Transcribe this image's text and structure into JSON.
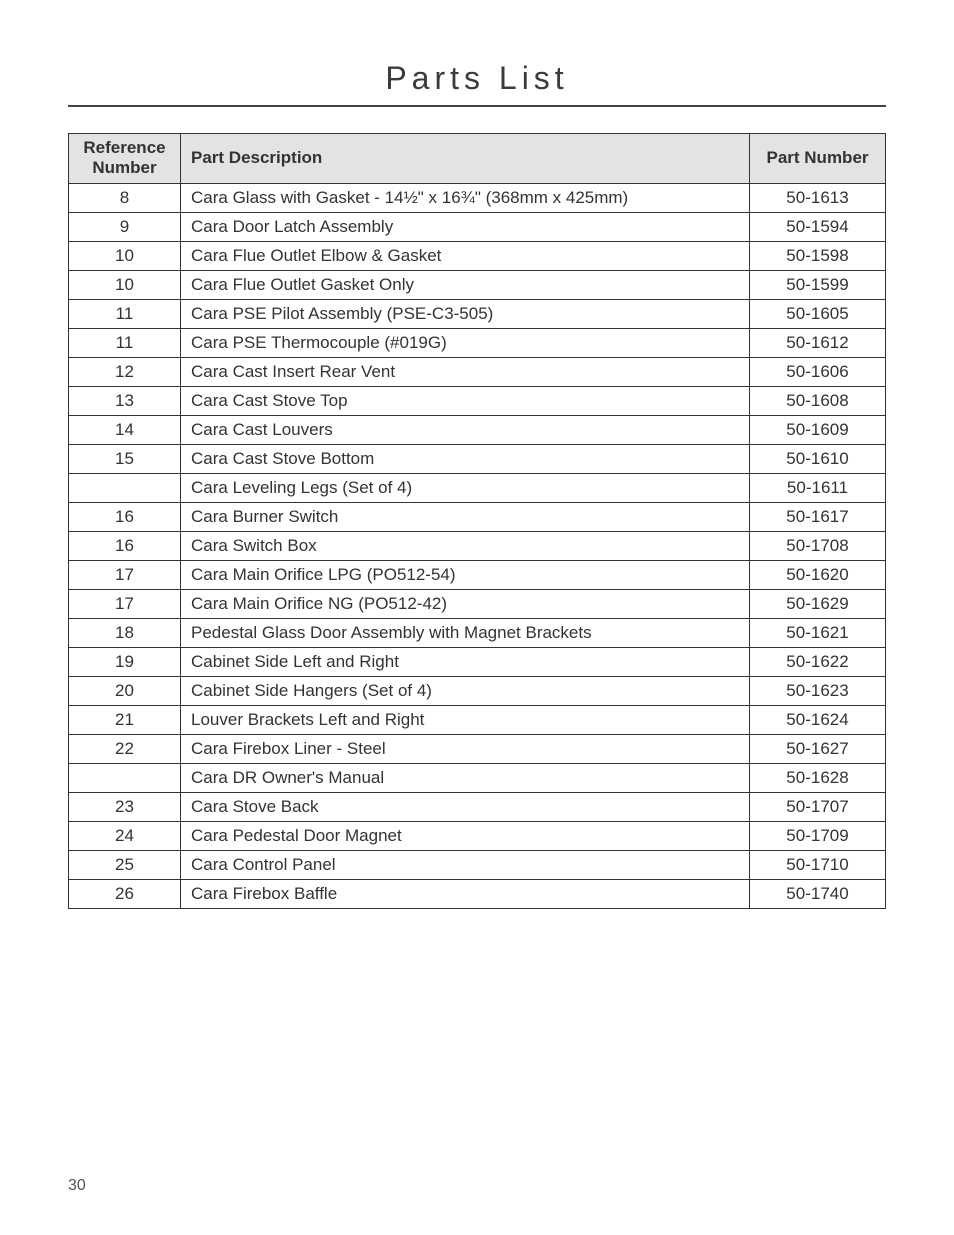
{
  "pageTitle": "Parts List",
  "pageNumber": "30",
  "columns": {
    "refLine1": "Reference",
    "refLine2": "Number",
    "desc": "Part Description",
    "pn": "Part Number"
  },
  "rows": [
    {
      "ref": "8",
      "desc": "Cara Glass with Gasket - 14½\" x 16¾\" (368mm x 425mm)",
      "pn": "50-1613"
    },
    {
      "ref": "9",
      "desc": "Cara Door Latch Assembly",
      "pn": "50-1594"
    },
    {
      "ref": "10",
      "desc": "Cara Flue Outlet Elbow & Gasket",
      "pn": "50-1598"
    },
    {
      "ref": "10",
      "desc": "Cara Flue Outlet Gasket Only",
      "pn": "50-1599"
    },
    {
      "ref": "11",
      "desc": "Cara PSE Pilot Assembly (PSE-C3-505)",
      "pn": "50-1605"
    },
    {
      "ref": "11",
      "desc": "Cara PSE Thermocouple (#019G)",
      "pn": "50-1612"
    },
    {
      "ref": "12",
      "desc": "Cara Cast Insert Rear Vent",
      "pn": "50-1606"
    },
    {
      "ref": "13",
      "desc": "Cara Cast Stove Top",
      "pn": "50-1608"
    },
    {
      "ref": "14",
      "desc": "Cara Cast Louvers",
      "pn": "50-1609"
    },
    {
      "ref": "15",
      "desc": "Cara Cast Stove Bottom",
      "pn": "50-1610"
    },
    {
      "ref": "",
      "desc": "Cara Leveling Legs (Set of 4)",
      "pn": "50-1611"
    },
    {
      "ref": "16",
      "desc": "Cara Burner Switch",
      "pn": "50-1617"
    },
    {
      "ref": "16",
      "desc": "Cara Switch Box",
      "pn": "50-1708"
    },
    {
      "ref": "17",
      "desc": "Cara Main Orifice LPG (PO512-54)",
      "pn": "50-1620"
    },
    {
      "ref": "17",
      "desc": "Cara Main Orifice NG (PO512-42)",
      "pn": "50-1629"
    },
    {
      "ref": "18",
      "desc": "Pedestal Glass Door Assembly with Magnet Brackets",
      "pn": "50-1621"
    },
    {
      "ref": "19",
      "desc": "Cabinet Side Left and Right",
      "pn": "50-1622"
    },
    {
      "ref": "20",
      "desc": "Cabinet Side Hangers (Set of 4)",
      "pn": "50-1623"
    },
    {
      "ref": "21",
      "desc": "Louver Brackets Left and Right",
      "pn": "50-1624"
    },
    {
      "ref": "22",
      "desc": "Cara Firebox Liner - Steel",
      "pn": "50-1627"
    },
    {
      "ref": "",
      "desc": "Cara DR Owner's Manual",
      "pn": "50-1628"
    },
    {
      "ref": "23",
      "desc": "Cara Stove Back",
      "pn": "50-1707"
    },
    {
      "ref": "24",
      "desc": "Cara Pedestal Door Magnet",
      "pn": "50-1709"
    },
    {
      "ref": "25",
      "desc": "Cara Control Panel",
      "pn": "50-1710"
    },
    {
      "ref": "26",
      "desc": "Cara Firebox Baffle",
      "pn": "50-1740"
    }
  ]
}
